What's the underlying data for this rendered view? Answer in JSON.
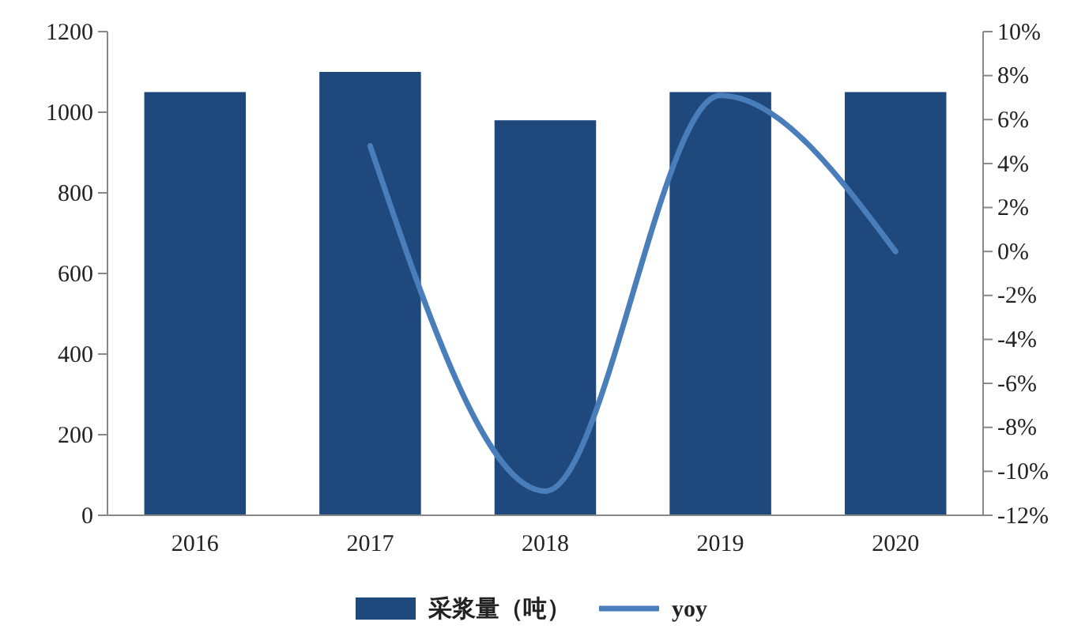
{
  "chart_data": {
    "type": "bar",
    "categories": [
      "2016",
      "2017",
      "2018",
      "2019",
      "2020"
    ],
    "series": [
      {
        "name": "采浆量（吨）",
        "color": "#1f497d",
        "values": [
          1050,
          1100,
          980,
          1050,
          1050
        ]
      },
      {
        "name": "yoy",
        "type": "line",
        "axis": "y2",
        "color": "#4a7ebb",
        "values": [
          null,
          4.8,
          -10.9,
          7.1,
          0
        ]
      }
    ],
    "ylim": [
      0,
      1200
    ],
    "yticks": [
      0,
      200,
      400,
      600,
      800,
      1000,
      1200
    ],
    "y2lim": [
      -12,
      10
    ],
    "y2ticks": [
      {
        "value": -12,
        "label": "-12%"
      },
      {
        "value": -10,
        "label": "-10%"
      },
      {
        "value": -8,
        "label": "-8%"
      },
      {
        "value": -6,
        "label": "-6%"
      },
      {
        "value": -4,
        "label": "-4%"
      },
      {
        "value": -2,
        "label": "-2%"
      },
      {
        "value": 0,
        "label": "0%"
      },
      {
        "value": 2,
        "label": "2%"
      },
      {
        "value": 4,
        "label": "4%"
      },
      {
        "value": 6,
        "label": "6%"
      },
      {
        "value": 8,
        "label": "8%"
      },
      {
        "value": 10,
        "label": "10%"
      }
    ],
    "legend": "bottom",
    "marker": "none"
  }
}
